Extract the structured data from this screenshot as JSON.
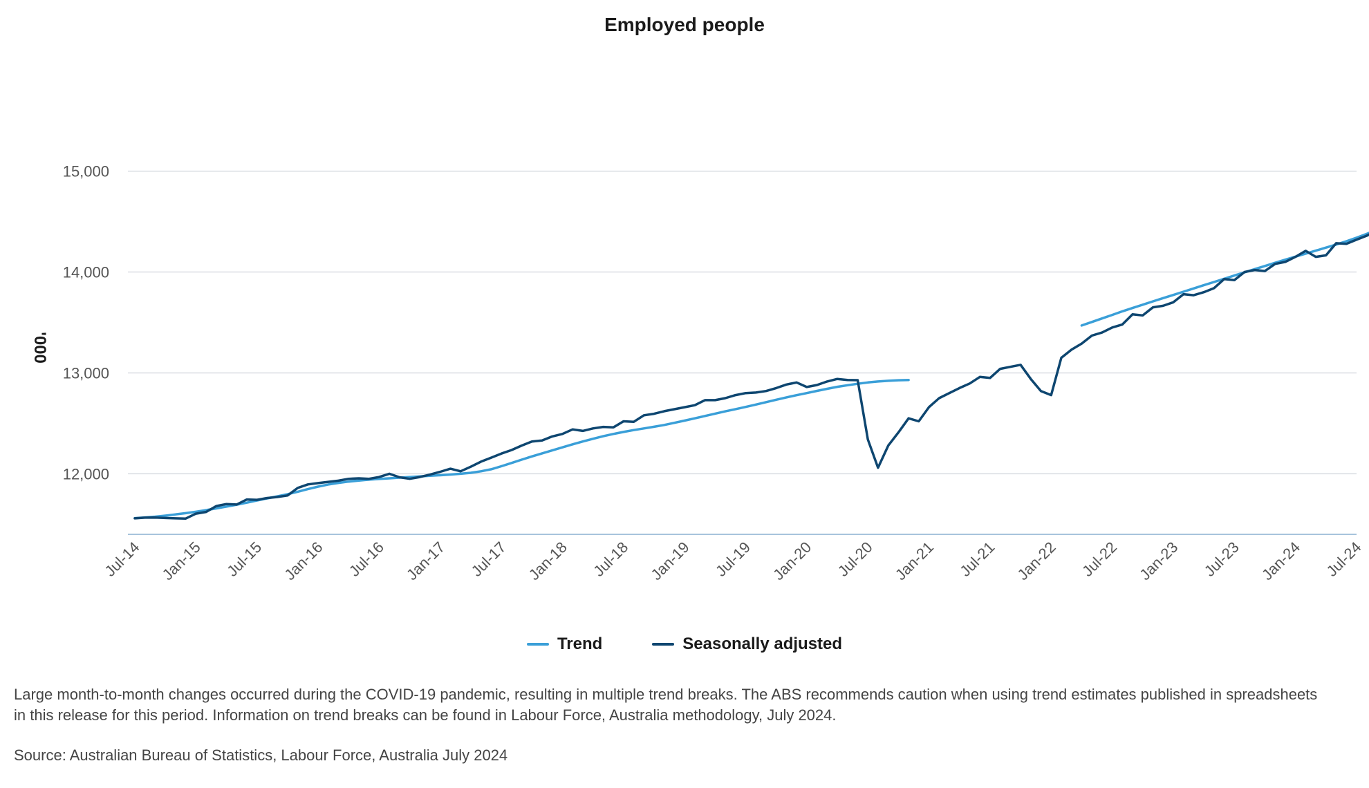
{
  "chart_data": {
    "type": "line",
    "title": "Employed people",
    "ylabel": "'000",
    "xlabel": "",
    "ylim": [
      11400,
      15600
    ],
    "yticks": [
      12000,
      13000,
      14000,
      15000
    ],
    "ytick_labels": [
      "12,000",
      "13,000",
      "14,000",
      "15,000"
    ],
    "xtick_labels": [
      "Jul-14",
      "Jan-15",
      "Jul-15",
      "Jan-16",
      "Jul-16",
      "Jan-17",
      "Jul-17",
      "Jan-18",
      "Jul-18",
      "Jan-19",
      "Jul-19",
      "Jan-20",
      "Jul-20",
      "Jan-21",
      "Jul-21",
      "Jan-22",
      "Jul-22",
      "Jan-23",
      "Jul-23",
      "Jan-24",
      "Jul-24"
    ],
    "x_unit": "month",
    "x": {
      "start": "2014-07",
      "end": "2024-07",
      "step_months": 1
    },
    "grid": true,
    "legend_position": "bottom",
    "series": [
      {
        "name": "Trend",
        "color": "#3a9fd8",
        "segments": [
          {
            "start": "2014-07",
            "values": [
              11560,
              11567,
              11575,
              11585,
              11597,
              11610,
              11624,
              11640,
              11657,
              11675,
              11694,
              11714,
              11735,
              11756,
              11776,
              11798,
              11822,
              11848,
              11873,
              11894,
              11910,
              11923,
              11933,
              11942,
              11949,
              11955,
              11962,
              11968,
              11974,
              11980,
              11986,
              11993,
              12000,
              12010,
              12025,
              12045,
              12075,
              12107,
              12140,
              12172,
              12202,
              12232,
              12262,
              12292,
              12320,
              12347,
              12372,
              12395,
              12415,
              12433,
              12450,
              12466,
              12484,
              12505,
              12527,
              12550,
              12573,
              12596,
              12619,
              12641,
              12663,
              12686,
              12710,
              12734,
              12757,
              12779,
              12800,
              12822,
              12842,
              12862,
              12878,
              12892,
              12905,
              12915,
              12922,
              12927,
              12930
            ]
          },
          {
            "start": "2022-04",
            "values": [
              13470,
              13505,
              13540,
              13575,
              13610,
              13643,
              13676,
              13709,
              13741,
              13773,
              13805,
              13837,
              13869,
              13901,
              13933,
              13965,
              13997,
              14029,
              14060,
              14091,
              14122,
              14152,
              14182,
              14212,
              14242,
              14272,
              14305,
              14340,
              14378,
              14420,
              14465
            ]
          }
        ]
      },
      {
        "name": "Seasonally adjusted",
        "color": "#0e4670",
        "segments": [
          {
            "start": "2014-07",
            "values": [
              11558,
              11565,
              11566,
              11562,
              11558,
              11556,
              11605,
              11622,
              11680,
              11700,
              11695,
              11745,
              11742,
              11760,
              11770,
              11785,
              11860,
              11895,
              11908,
              11920,
              11932,
              11950,
              11955,
              11950,
              11968,
              12000,
              11965,
              11950,
              11968,
              11992,
              12020,
              12050,
              12025,
              12070,
              12120,
              12160,
              12200,
              12235,
              12280,
              12320,
              12330,
              12370,
              12395,
              12440,
              12425,
              12450,
              12465,
              12460,
              12520,
              12515,
              12580,
              12595,
              12620,
              12640,
              12660,
              12680,
              12730,
              12730,
              12750,
              12780,
              12800,
              12805,
              12820,
              12850,
              12885,
              12905,
              12860,
              12880,
              12915,
              12940,
              12930,
              12928,
              12340,
              12060,
              12280,
              12410,
              12550,
              12520,
              12660,
              12750,
              12800,
              12850,
              12895,
              12960,
              12950,
              13040,
              13060,
              13080,
              12940,
              12820,
              12780,
              13150,
              13230,
              13290,
              13370,
              13400,
              13450,
              13480,
              13580,
              13570,
              13650,
              13665,
              13700,
              13780,
              13770,
              13800,
              13840,
              13930,
              13920,
              14000,
              14020,
              14010,
              14080,
              14100,
              14150,
              14210,
              14150,
              14165,
              14285,
              14280,
              14320,
              14360,
              14410,
              14465
            ]
          }
        ]
      }
    ]
  },
  "note": "Large month-to-month changes occurred during the COVID-19 pandemic, resulting in multiple trend breaks. The ABS recommends caution when using trend estimates published in spreadsheets in this release for this period. Information on trend breaks can be found in Labour Force, Australia methodology, July 2024.",
  "source": "Source: Australian Bureau of Statistics, Labour Force, Australia July 2024"
}
